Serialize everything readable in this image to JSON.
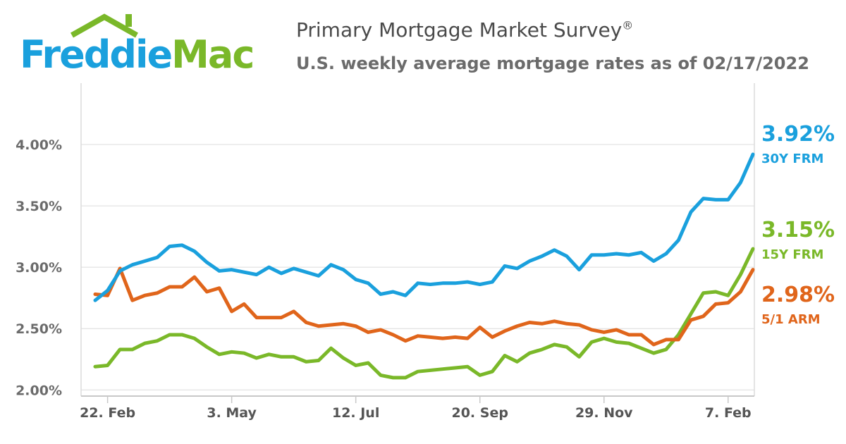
{
  "logo": {
    "part1": "Freddie",
    "part2": "Mac"
  },
  "title": "Primary Mortgage Market Survey",
  "title_mark": "®",
  "subtitle": "U.S. weekly average mortgage rates as of 02/17/2022",
  "colors": {
    "frm30": "#1aa0dd",
    "frm15": "#7ab829",
    "arm51": "#e0651b",
    "grid": "#dcdcdc",
    "axis": "#c8c8c8"
  },
  "chart_data": {
    "type": "line",
    "title": "Primary Mortgage Market Survey",
    "subtitle": "U.S. weekly average mortgage rates as of 02/17/2022",
    "x_ticks": [
      "22. Feb",
      "3. May",
      "12. Jul",
      "20. Sep",
      "29. Nov",
      "7. Feb"
    ],
    "x_tick_weeks": [
      1,
      11,
      21,
      31,
      41,
      51
    ],
    "y_ticks": [
      "2.00%",
      "2.50%",
      "3.00%",
      "3.50%",
      "4.00%"
    ],
    "y_tick_values": [
      2.0,
      2.5,
      3.0,
      3.5,
      4.0
    ],
    "ylim": [
      1.95,
      4.5
    ],
    "x_range_weeks": [
      0,
      52
    ],
    "grid": true,
    "series": [
      {
        "key": "frm30",
        "label_value": "3.92%",
        "label_name": "30Y FRM",
        "values": [
          2.73,
          2.81,
          2.97,
          3.02,
          3.05,
          3.08,
          3.17,
          3.18,
          3.13,
          3.04,
          2.97,
          2.98,
          2.96,
          2.94,
          3.0,
          2.95,
          2.99,
          2.96,
          2.93,
          3.02,
          2.98,
          2.9,
          2.87,
          2.78,
          2.8,
          2.77,
          2.87,
          2.86,
          2.87,
          2.87,
          2.88,
          2.86,
          2.88,
          3.01,
          2.99,
          3.05,
          3.09,
          3.14,
          3.09,
          2.98,
          3.1,
          3.1,
          3.11,
          3.1,
          3.12,
          3.05,
          3.11,
          3.22,
          3.45,
          3.56,
          3.55,
          3.55,
          3.69,
          3.92
        ]
      },
      {
        "key": "frm15",
        "label_value": "3.15%",
        "label_name": "15Y FRM",
        "values": [
          2.19,
          2.2,
          2.33,
          2.33,
          2.38,
          2.4,
          2.45,
          2.45,
          2.42,
          2.35,
          2.29,
          2.31,
          2.3,
          2.26,
          2.29,
          2.27,
          2.27,
          2.23,
          2.24,
          2.34,
          2.26,
          2.2,
          2.22,
          2.12,
          2.1,
          2.1,
          2.15,
          2.16,
          2.17,
          2.18,
          2.19,
          2.12,
          2.15,
          2.28,
          2.23,
          2.3,
          2.33,
          2.37,
          2.35,
          2.27,
          2.39,
          2.42,
          2.39,
          2.38,
          2.34,
          2.3,
          2.33,
          2.45,
          2.62,
          2.79,
          2.8,
          2.77,
          2.94,
          3.15
        ]
      },
      {
        "key": "arm51",
        "label_value": "2.98%",
        "label_name": "5/1 ARM",
        "values": [
          2.78,
          2.77,
          2.99,
          2.73,
          2.77,
          2.79,
          2.84,
          2.84,
          2.92,
          2.8,
          2.83,
          2.64,
          2.7,
          2.59,
          2.59,
          2.59,
          2.64,
          2.55,
          2.52,
          2.53,
          2.54,
          2.52,
          2.47,
          2.49,
          2.45,
          2.4,
          2.44,
          2.43,
          2.42,
          2.43,
          2.42,
          2.51,
          2.43,
          2.48,
          2.52,
          2.55,
          2.54,
          2.56,
          2.54,
          2.53,
          2.49,
          2.47,
          2.49,
          2.45,
          2.45,
          2.37,
          2.41,
          2.41,
          2.57,
          2.6,
          2.7,
          2.71,
          2.8,
          2.98
        ]
      }
    ]
  }
}
